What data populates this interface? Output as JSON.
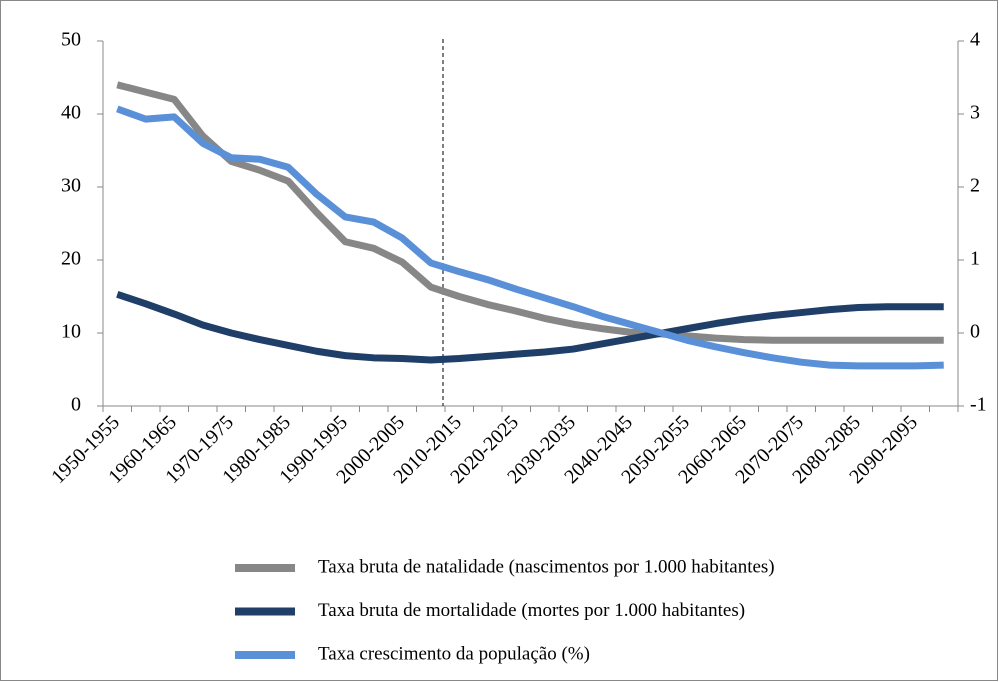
{
  "chart_data": {
    "type": "line",
    "categories": [
      "1950-1955",
      null,
      "1960-1965",
      null,
      "1970-1975",
      null,
      "1980-1985",
      null,
      "1990-1995",
      null,
      "2000-2005",
      null,
      "2010-2015",
      null,
      "2020-2025",
      null,
      "2030-2035",
      null,
      "2040-2045",
      null,
      "2050-2055",
      null,
      "2060-2065",
      null,
      "2070-2075",
      null,
      "2080-2085",
      null,
      "2090-2095",
      null
    ],
    "series": [
      {
        "name": "Taxa bruta de natalidade (nascimentos por 1.000 habitantes)",
        "color": "#878787",
        "values": [
          44,
          43,
          42,
          37,
          33.5,
          32.3,
          30.8,
          26.5,
          22.5,
          21.6,
          19.7,
          16.3,
          15.0,
          13.9,
          13.0,
          12.0,
          11.2,
          10.6,
          10.1,
          9.9,
          9.6,
          9.3,
          9.1,
          9.0,
          9.0,
          9.0,
          9.0,
          9.0,
          9.0,
          9.0
        ]
      },
      {
        "name": "Taxa bruta de mortalidade (mortes por 1.000 habitantes)",
        "color": "#1f3e68",
        "values": [
          15.3,
          14.0,
          12.6,
          11.1,
          10.0,
          9.1,
          8.3,
          7.5,
          6.9,
          6.6,
          6.5,
          6.3,
          6.5,
          6.8,
          7.1,
          7.4,
          7.8,
          8.5,
          9.2,
          9.9,
          10.6,
          11.3,
          11.9,
          12.4,
          12.8,
          13.2,
          13.5,
          13.6,
          13.6,
          13.6
        ]
      },
      {
        "name": "Taxa crescimento da população (%)",
        "color": "#5a90d8",
        "axis": "y2",
        "values": [
          3.07,
          2.93,
          2.96,
          2.6,
          2.4,
          2.38,
          2.27,
          1.9,
          1.59,
          1.52,
          1.3,
          0.96,
          0.84,
          0.73,
          0.6,
          0.48,
          0.36,
          0.23,
          0.12,
          0.01,
          -0.1,
          -0.19,
          -0.27,
          -0.34,
          -0.4,
          -0.44,
          -0.45,
          -0.45,
          -0.45,
          -0.44
        ]
      }
    ],
    "ylim": [
      0,
      50
    ],
    "yticks": [
      0,
      10,
      20,
      30,
      40,
      50
    ],
    "y2lim": [
      -1,
      4
    ],
    "y2ticks": [
      -1,
      0,
      1,
      2,
      3,
      4
    ]
  }
}
